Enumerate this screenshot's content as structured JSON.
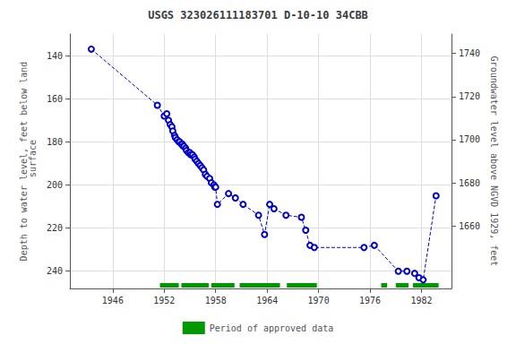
{
  "chart_data": {
    "type": "line",
    "title": "USGS 323026111183701 D-10-10 34CBB",
    "y_label": "Depth to water level, feet below land\n surface",
    "y2_label": "Groundwater level above NGVD 1929, feet",
    "xlim": [
      1941.0,
      1985.5
    ],
    "xticks": [
      1946,
      1952,
      1958,
      1964,
      1970,
      1976,
      1982
    ],
    "ylim": [
      248,
      130
    ],
    "yticks": [
      140,
      160,
      180,
      200,
      220,
      240
    ],
    "y2lim": [
      1631,
      1749
    ],
    "y2ticks": [
      1660,
      1680,
      1700,
      1720,
      1740
    ],
    "grid": true,
    "legend": "bottom",
    "x": [
      1943.5,
      1951.2,
      1952.0,
      1952.3,
      1952.5,
      1952.7,
      1952.9,
      1953.0,
      1953.2,
      1953.3,
      1953.5,
      1953.7,
      1953.8,
      1954.0,
      1954.1,
      1954.2,
      1954.3,
      1954.5,
      1954.6,
      1954.8,
      1955.0,
      1955.1,
      1955.3,
      1955.5,
      1955.6,
      1955.8,
      1956.0,
      1956.2,
      1956.4,
      1956.6,
      1956.8,
      1957.0,
      1957.3,
      1957.5,
      1957.8,
      1957.9,
      1958.0,
      1958.2,
      1959.5,
      1960.3,
      1961.2,
      1963.0,
      1963.7,
      1964.3,
      1964.8,
      1966.2,
      1968.0,
      1968.5,
      1969.0,
      1969.5,
      1975.3,
      1976.5,
      1979.3,
      1980.3,
      1981.2,
      1981.7,
      1982.2,
      1983.7
    ],
    "series": [
      {
        "color": "#0000cc",
        "line_style": "dashed",
        "marker": "circle",
        "values": [
          137,
          163,
          168,
          167,
          170,
          172,
          173,
          175,
          177,
          178,
          179,
          180,
          180,
          181,
          181,
          182,
          182,
          183,
          184,
          185,
          185,
          186,
          186,
          187,
          188,
          189,
          190,
          191,
          192,
          193,
          195,
          196,
          197,
          199,
          200,
          201,
          201,
          209,
          204,
          206,
          209,
          214,
          223,
          209,
          211,
          214,
          215,
          221,
          228,
          229,
          229,
          228,
          240,
          240,
          241,
          243,
          244,
          205
        ]
      }
    ],
    "periods": {
      "name": "Period of approved data",
      "color": "#009900",
      "ranges": [
        [
          1951.5,
          1953.7
        ],
        [
          1954.0,
          1957.2
        ],
        [
          1957.5,
          1960.2
        ],
        [
          1960.8,
          1965.5
        ],
        [
          1966.3,
          1969.8
        ],
        [
          1977.3,
          1978.0
        ],
        [
          1979.0,
          1980.5
        ],
        [
          1981.0,
          1984.0
        ]
      ]
    }
  }
}
